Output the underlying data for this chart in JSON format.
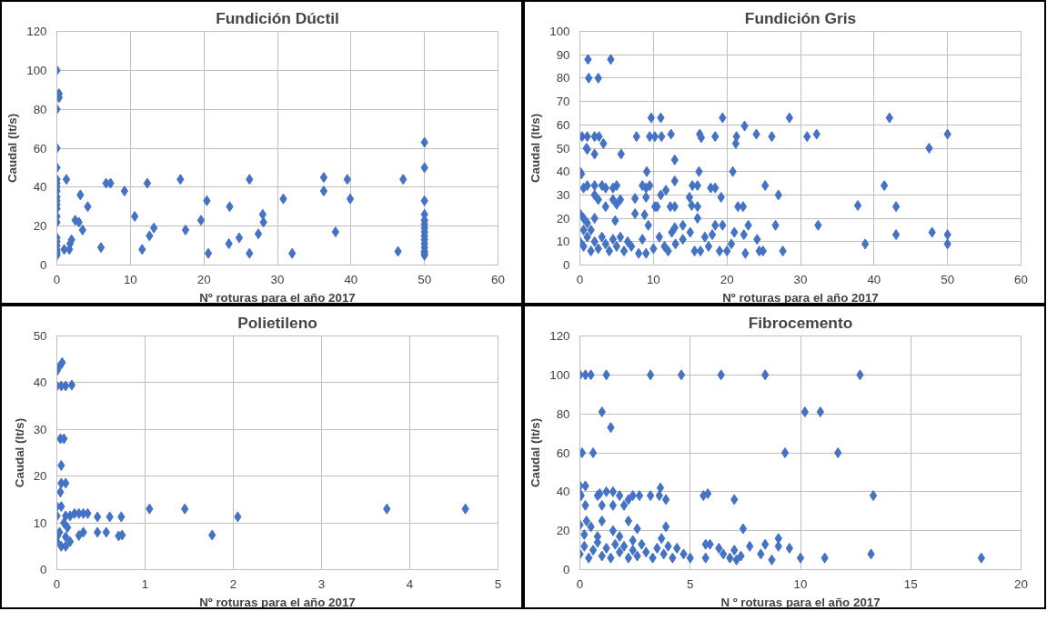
{
  "chart_data": [
    {
      "type": "scatter",
      "title": "Fundición Dúctil",
      "xlabel": "Nº roturas para el año 2017",
      "ylabel": "Caudal (lt/s)",
      "xlim": [
        0,
        60
      ],
      "ylim": [
        0,
        120
      ],
      "xticks": [
        0,
        10,
        20,
        30,
        40,
        50,
        60
      ],
      "yticks": [
        0,
        20,
        40,
        60,
        80,
        100,
        120
      ],
      "grid": true,
      "marker": "diamond",
      "series": [
        {
          "color": "#4472c4",
          "x": [
            0,
            0,
            0,
            0,
            0,
            0,
            0,
            0,
            0,
            0,
            0,
            0,
            0,
            0,
            0,
            0,
            0,
            0,
            0,
            0,
            0,
            0.3,
            0.3,
            1.3,
            1,
            1.7,
            1.8,
            2,
            2.5,
            3,
            3.2,
            3.5,
            4.2,
            6,
            6.7,
            7.3,
            9.2,
            10.6,
            11.6,
            12.3,
            12.6,
            13.2,
            16.8,
            17.5,
            19.6,
            20.4,
            20.6,
            23.4,
            23.5,
            24.8,
            26.2,
            26.2,
            27.4,
            28,
            28.1,
            30.8,
            32,
            36.3,
            36.3,
            37.9,
            39.5,
            39.9,
            46.4,
            47.1,
            50,
            50,
            50,
            50,
            50,
            50,
            50,
            50,
            50,
            50,
            50,
            50,
            50,
            50,
            50
          ],
          "values": [
            100,
            80,
            60,
            50,
            44,
            42,
            40,
            38,
            35,
            33,
            31,
            29,
            25,
            22,
            14,
            12,
            10,
            8,
            7,
            6,
            5,
            88,
            86,
            44,
            8,
            8,
            11,
            13,
            23,
            22,
            36,
            18,
            30,
            9,
            42,
            42,
            38,
            25,
            8,
            42,
            15,
            19,
            44,
            18,
            23,
            33,
            6,
            11,
            30,
            14,
            44,
            6,
            16,
            26,
            22,
            34,
            6,
            45,
            38,
            17,
            44,
            34,
            7,
            44,
            63,
            50,
            33,
            26,
            23,
            21,
            19,
            17,
            15,
            13,
            11,
            9,
            7,
            6,
            5
          ]
        }
      ]
    },
    {
      "type": "scatter",
      "title": "Fundición Gris",
      "xlabel": "Nº roturas para el año 2017",
      "ylabel": "Caudal (lt/s)",
      "xlim": [
        0,
        60
      ],
      "ylim": [
        0,
        100
      ],
      "xticks": [
        0,
        10,
        20,
        30,
        40,
        50,
        60
      ],
      "yticks": [
        0,
        10,
        20,
        30,
        40,
        50,
        60,
        70,
        80,
        90,
        100
      ],
      "grid": true,
      "marker": "diamond",
      "series": [
        {
          "color": "#4472c4",
          "x": [
            1.1,
            4.2,
            1.2,
            2.5,
            9.7,
            11,
            19.4,
            28.5,
            42.1,
            0.3,
            1,
            2,
            2.6,
            3.2,
            0.9,
            1,
            2,
            5.6,
            7.7,
            9.5,
            10.2,
            11.1,
            12.4,
            16.3,
            16.5,
            18.4,
            21.3,
            21.2,
            22.4,
            24,
            26.1,
            30.9,
            32.2,
            47.5,
            50,
            0,
            0.2,
            9.1,
            12.9,
            16.2,
            20.8,
            0.5,
            1,
            2,
            3,
            3.5,
            5,
            4.5,
            8.5,
            9.5,
            9,
            11,
            11.7,
            12.9,
            15.3,
            16,
            17.8,
            18.4,
            25.2,
            27,
            41.4,
            2,
            2.5,
            3.5,
            4.5,
            5,
            5.5,
            7.5,
            9,
            10.2,
            10.5,
            12.3,
            12.9,
            14.9,
            15.2,
            16,
            19.2,
            21.5,
            22.2,
            37.8,
            43,
            0,
            0.5,
            1,
            2,
            0.5,
            1.5,
            4.8,
            7.5,
            8.8,
            9.3,
            12.9,
            14,
            16,
            18.4,
            19.4,
            22.9,
            26.6,
            32.4,
            47.9,
            43,
            50,
            0,
            0.5,
            1,
            1.5,
            2,
            2.5,
            3,
            3.5,
            4,
            4.5,
            5,
            5.5,
            6,
            6.5,
            7,
            8,
            8.5,
            9,
            10,
            10.8,
            11.5,
            12,
            12.5,
            13,
            14,
            15,
            15.6,
            16.4,
            17,
            17.5,
            18,
            19,
            20,
            20.6,
            21,
            22.5,
            22.3,
            24.1,
            24.4,
            24.9,
            27.6,
            38.8,
            50
          ],
          "values": [
            88,
            88,
            80,
            80,
            63,
            63,
            63,
            63,
            63,
            55,
            55,
            55,
            55,
            52,
            50,
            49.5,
            47.5,
            47.5,
            55,
            55,
            55,
            55,
            56,
            56,
            54.5,
            55,
            55,
            52,
            59.5,
            56,
            55,
            55,
            56,
            50,
            56,
            40,
            39,
            40,
            45,
            40,
            40,
            33,
            34,
            34,
            34,
            33,
            34,
            33,
            34,
            34,
            33,
            30,
            32,
            36,
            34,
            34,
            33,
            33,
            34,
            30,
            34,
            30,
            28,
            25,
            28,
            26,
            28,
            28.5,
            29,
            25,
            25,
            25,
            25,
            29,
            25.5,
            25,
            29,
            25,
            25,
            25.5,
            25,
            22,
            20,
            18,
            20,
            15,
            15,
            19,
            22,
            21.5,
            17,
            16,
            17,
            20,
            17,
            17,
            17,
            17,
            17,
            14,
            13,
            13,
            10,
            8,
            12,
            6,
            10,
            7,
            12,
            9,
            6,
            11,
            8,
            12,
            6,
            10,
            8,
            5,
            11,
            5,
            7,
            12,
            8,
            6,
            14,
            9,
            11,
            14,
            6,
            6,
            12,
            8,
            13,
            6,
            6,
            9,
            14,
            5,
            13,
            11,
            6,
            6,
            6,
            9,
            9
          ]
        }
      ]
    },
    {
      "type": "scatter",
      "title": "Polietileno",
      "xlabel": "Nº roturas para el año 2017",
      "ylabel": "Caudal (lt/s)",
      "xlim": [
        0,
        5
      ],
      "ylim": [
        0,
        50
      ],
      "xticks": [
        0,
        1,
        2,
        3,
        4,
        5
      ],
      "yticks": [
        0,
        10,
        20,
        30,
        40,
        50
      ],
      "grid": true,
      "marker": "diamond",
      "series": [
        {
          "color": "#4472c4",
          "x": [
            0,
            0.03,
            0.06,
            0,
            0.05,
            0.1,
            0.17,
            0.04,
            0.08,
            0.05,
            0.04,
            0.05,
            0.1,
            0,
            0.05,
            0,
            0.1,
            0.15,
            0.2,
            0.25,
            0.3,
            0.35,
            0.46,
            0.6,
            0.73,
            1.05,
            1.45,
            2.05,
            3.74,
            4.63,
            0.3,
            0.46,
            0.56,
            0.7,
            0.74,
            1.76,
            0.25,
            0,
            0,
            0.05,
            0.1,
            0.1,
            0.15,
            0.12,
            0.08,
            0.03
          ],
          "values": [
            42.5,
            43.5,
            44.3,
            39.3,
            39.3,
            39.3,
            39.5,
            28,
            28,
            22.3,
            16.6,
            18.5,
            18.5,
            13.5,
            13.5,
            11.5,
            11.5,
            11.5,
            12,
            12,
            12,
            12,
            11.3,
            11.3,
            11.3,
            13,
            13,
            11.3,
            13,
            13,
            8,
            8,
            8,
            7.2,
            7.4,
            7.4,
            7.3,
            6,
            7,
            5,
            5,
            7,
            6,
            9,
            10,
            8
          ]
        }
      ]
    },
    {
      "type": "scatter",
      "title": "Fibrocemento",
      "xlabel": "N º roturas para el año 2017",
      "ylabel": "Caudal (lt/s)",
      "xlim": [
        0,
        20
      ],
      "ylim": [
        0,
        120
      ],
      "xticks": [
        0,
        5,
        10,
        15,
        20
      ],
      "yticks": [
        0,
        20,
        40,
        60,
        80,
        100,
        120
      ],
      "grid": true,
      "marker": "diamond",
      "series": [
        {
          "color": "#4472c4",
          "x": [
            0,
            0.25,
            0.5,
            1.2,
            3.2,
            4.6,
            6.4,
            8.4,
            12.7,
            1,
            10.2,
            10.9,
            1.4,
            0.1,
            0.6,
            9.3,
            11.7,
            0,
            0.25,
            0,
            0.05,
            0.8,
            0.9,
            1.2,
            1.5,
            1.8,
            1.5,
            1,
            0.25,
            2,
            2.2,
            2.4,
            2.7,
            3.2,
            3.6,
            3.65,
            3.9,
            5.6,
            5.8,
            7,
            13.3,
            0,
            0.3,
            0.5,
            1,
            1.5,
            2.2,
            2.6,
            3.9,
            7.4,
            0.2,
            0.8,
            1.8,
            2.4,
            3.7,
            9,
            0,
            0.2,
            0.4,
            0.6,
            0.8,
            1,
            1.2,
            1.4,
            1.6,
            1.8,
            2,
            2.2,
            2.4,
            2.6,
            2.8,
            3,
            3.3,
            3.5,
            3.8,
            4,
            4.2,
            4.4,
            4.7,
            5,
            5.7,
            5.7,
            5.9,
            6.3,
            6.5,
            6.8,
            7,
            7.1,
            7.3,
            7.7,
            8.2,
            8.4,
            8.7,
            9,
            9.5,
            10,
            11.1,
            13.2,
            18.2
          ],
          "values": [
            100,
            100,
            100,
            100,
            100,
            100,
            100,
            100,
            100,
            81,
            81,
            81,
            73,
            60,
            60,
            60,
            60,
            43,
            43,
            39,
            38,
            38,
            39,
            40,
            40,
            38,
            33,
            33,
            33,
            33,
            36,
            38,
            38,
            38,
            38,
            42,
            36,
            38,
            39,
            36,
            38,
            23,
            25,
            22,
            25,
            20,
            25,
            21,
            22,
            21,
            18,
            17,
            17,
            15,
            16,
            16,
            8,
            12,
            6,
            10,
            14,
            7,
            11,
            6,
            13,
            9,
            12,
            6,
            10,
            7,
            13,
            9,
            6,
            11,
            8,
            12,
            6,
            11,
            8,
            6,
            6,
            13,
            13,
            11,
            8,
            6,
            10,
            5,
            7,
            12,
            8,
            13,
            5,
            12,
            11,
            6,
            6,
            8,
            6
          ]
        }
      ]
    }
  ]
}
